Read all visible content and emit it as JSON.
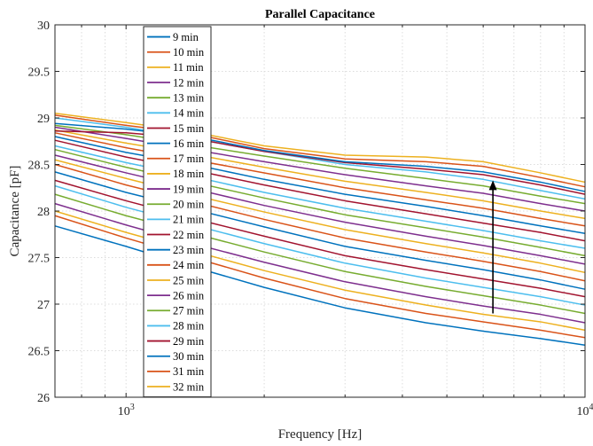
{
  "chart_data": {
    "type": "line",
    "title": "Parallel Capacitance",
    "xlabel": "Frequency [Hz]",
    "ylabel": "Capacitance [pF]",
    "xscale": "log",
    "xlim": [
      700,
      10000
    ],
    "ylim": [
      26,
      30
    ],
    "yticks": [
      "26",
      "26.5",
      "27",
      "27.5",
      "28",
      "28.5",
      "29",
      "29.5",
      "30"
    ],
    "xticks": [
      {
        "value": 1000,
        "base": "10",
        "exp": "3"
      },
      {
        "value": 10000,
        "base": "10",
        "exp": "4"
      }
    ],
    "grid": true,
    "legend_position": "top-left",
    "annotation": {
      "type": "arrow",
      "from": [
        6300,
        26.9
      ],
      "to": [
        6300,
        28.33
      ]
    },
    "x": [
      700,
      1000,
      1400,
      2000,
      3000,
      4500,
      6000,
      8000,
      10000
    ],
    "series": [
      {
        "name": "9 min",
        "color": "#0072BD",
        "values": [
          27.84,
          27.62,
          27.4,
          27.18,
          26.96,
          26.8,
          26.71,
          26.63,
          26.56
        ]
      },
      {
        "name": "10 min",
        "color": "#D95319",
        "values": [
          27.95,
          27.71,
          27.5,
          27.28,
          27.06,
          26.9,
          26.81,
          26.72,
          26.64
        ]
      },
      {
        "name": "11 min",
        "color": "#EDB120",
        "values": [
          28.0,
          27.77,
          27.57,
          27.36,
          27.15,
          26.99,
          26.89,
          26.81,
          26.72
        ]
      },
      {
        "name": "12 min",
        "color": "#7E2F8E",
        "values": [
          28.08,
          27.85,
          27.65,
          27.45,
          27.24,
          27.08,
          26.98,
          26.89,
          26.8
        ]
      },
      {
        "name": "13 min",
        "color": "#77AC30",
        "values": [
          28.18,
          27.95,
          27.76,
          27.56,
          27.35,
          27.19,
          27.09,
          26.99,
          26.9
        ]
      },
      {
        "name": "14 min",
        "color": "#4DBEEE",
        "values": [
          28.27,
          28.04,
          27.85,
          27.65,
          27.44,
          27.28,
          27.18,
          27.08,
          26.99
        ]
      },
      {
        "name": "15 min",
        "color": "#A2142F",
        "values": [
          28.33,
          28.11,
          27.92,
          27.73,
          27.52,
          27.37,
          27.27,
          27.17,
          27.08
        ]
      },
      {
        "name": "16 min",
        "color": "#0072BD",
        "values": [
          28.42,
          28.2,
          28.02,
          27.83,
          27.62,
          27.47,
          27.37,
          27.26,
          27.16
        ]
      },
      {
        "name": "17 min",
        "color": "#D95319",
        "values": [
          28.5,
          28.28,
          28.1,
          27.91,
          27.71,
          27.56,
          27.46,
          27.35,
          27.25
        ]
      },
      {
        "name": "18 min",
        "color": "#EDB120",
        "values": [
          28.55,
          28.35,
          28.17,
          27.99,
          27.8,
          27.65,
          27.55,
          27.44,
          27.34
        ]
      },
      {
        "name": "19 min",
        "color": "#7E2F8E",
        "values": [
          28.6,
          28.41,
          28.24,
          28.06,
          27.88,
          27.73,
          27.63,
          27.52,
          27.43
        ]
      },
      {
        "name": "20 min",
        "color": "#77AC30",
        "values": [
          28.66,
          28.47,
          28.31,
          28.14,
          27.96,
          27.82,
          27.72,
          27.61,
          27.52
        ]
      },
      {
        "name": "21 min",
        "color": "#4DBEEE",
        "values": [
          28.7,
          28.52,
          28.37,
          28.2,
          28.03,
          27.89,
          27.79,
          27.68,
          27.6
        ]
      },
      {
        "name": "22 min",
        "color": "#A2142F",
        "values": [
          28.76,
          28.58,
          28.44,
          28.28,
          28.11,
          27.97,
          27.87,
          27.77,
          27.68
        ]
      },
      {
        "name": "23 min",
        "color": "#0072BD",
        "values": [
          28.8,
          28.63,
          28.5,
          28.34,
          28.18,
          28.05,
          27.95,
          27.84,
          27.76
        ]
      },
      {
        "name": "24 min",
        "color": "#D95319",
        "values": [
          28.84,
          28.68,
          28.55,
          28.41,
          28.25,
          28.12,
          28.03,
          27.92,
          27.84
        ]
      },
      {
        "name": "25 min",
        "color": "#EDB120",
        "values": [
          28.87,
          28.73,
          28.61,
          28.47,
          28.32,
          28.2,
          28.11,
          28.0,
          27.92
        ]
      },
      {
        "name": "26 min",
        "color": "#7E2F8E",
        "values": [
          28.9,
          28.78,
          28.66,
          28.53,
          28.39,
          28.27,
          28.19,
          28.08,
          28.0
        ]
      },
      {
        "name": "27 min",
        "color": "#77AC30",
        "values": [
          28.92,
          28.82,
          28.71,
          28.59,
          28.46,
          28.35,
          28.27,
          28.16,
          28.08
        ]
      },
      {
        "name": "28 min",
        "color": "#4DBEEE",
        "values": [
          29.0,
          28.9,
          28.78,
          28.64,
          28.5,
          28.42,
          28.34,
          28.22,
          28.13
        ]
      },
      {
        "name": "29 min",
        "color": "#A2142F",
        "values": [
          28.86,
          28.84,
          28.78,
          28.64,
          28.52,
          28.45,
          28.39,
          28.28,
          28.18
        ]
      },
      {
        "name": "30 min",
        "color": "#0072BD",
        "values": [
          28.94,
          28.88,
          28.8,
          28.65,
          28.53,
          28.48,
          28.42,
          28.31,
          28.21
        ]
      },
      {
        "name": "31 min",
        "color": "#D95319",
        "values": [
          29.03,
          28.92,
          28.83,
          28.67,
          28.56,
          28.53,
          28.48,
          28.36,
          28.26
        ]
      },
      {
        "name": "32 min",
        "color": "#EDB120",
        "values": [
          29.05,
          28.95,
          28.85,
          28.7,
          28.6,
          28.58,
          28.53,
          28.41,
          28.31
        ]
      }
    ]
  }
}
